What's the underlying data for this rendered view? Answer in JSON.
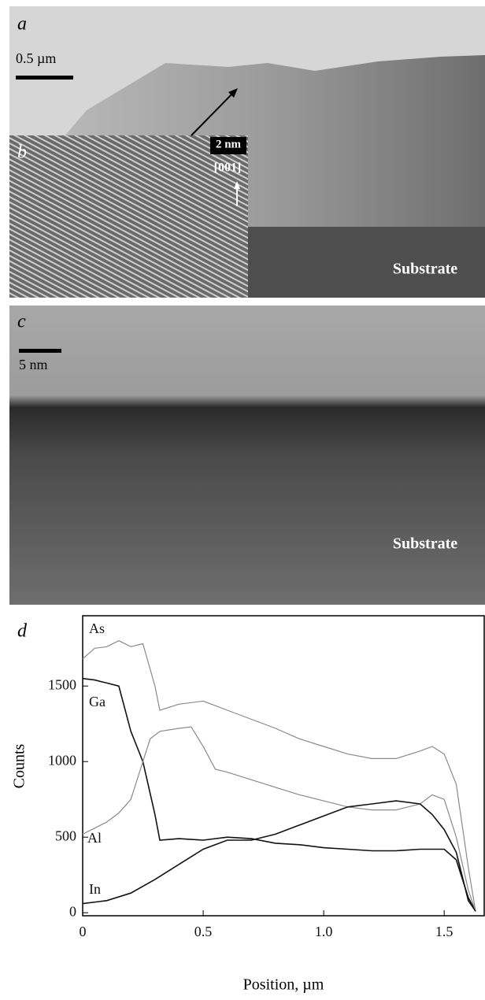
{
  "panels": {
    "a": {
      "letter": "a",
      "scale": "0.5 µm",
      "label": "Substrate"
    },
    "b": {
      "letter": "b",
      "scale": "2 nm",
      "direction": "[001]"
    },
    "c": {
      "letter": "c",
      "scale": "5 nm",
      "label": "Substrate"
    }
  },
  "chart_data": {
    "type": "line",
    "letter": "d",
    "x_label": "Position, µm",
    "y_label": "Counts",
    "xlim": [
      0,
      1.666
    ],
    "ylim": [
      -20,
      1965
    ],
    "xticks": [
      0,
      0.5,
      {
        "value": 1,
        "label": "1.0"
      },
      1.5
    ],
    "yticks": [
      0,
      500,
      1000,
      1500
    ],
    "series": [
      {
        "name": "As",
        "color": "#8a8a8a",
        "x": [
          0,
          0.05,
          0.1,
          0.15,
          0.2,
          0.25,
          0.3,
          0.32,
          0.4,
          0.5,
          0.6,
          0.7,
          0.8,
          0.9,
          1.0,
          1.1,
          1.2,
          1.3,
          1.4,
          1.45,
          1.5,
          1.55,
          1.6,
          1.63
        ],
        "values": [
          1680,
          1750,
          1760,
          1800,
          1760,
          1780,
          1500,
          1340,
          1380,
          1400,
          1340,
          1280,
          1220,
          1150,
          1100,
          1050,
          1020,
          1020,
          1070,
          1100,
          1050,
          850,
          300,
          10
        ]
      },
      {
        "name": "Ga",
        "color": "#111111",
        "x": [
          0,
          0.05,
          0.1,
          0.15,
          0.2,
          0.25,
          0.3,
          0.32,
          0.4,
          0.5,
          0.6,
          0.7,
          0.8,
          0.9,
          1.0,
          1.1,
          1.2,
          1.3,
          1.4,
          1.5,
          1.55,
          1.6,
          1.63
        ],
        "values": [
          1550,
          1540,
          1520,
          1500,
          1200,
          1000,
          650,
          480,
          490,
          480,
          500,
          490,
          460,
          450,
          430,
          420,
          410,
          410,
          420,
          420,
          350,
          100,
          10
        ]
      },
      {
        "name": "Al",
        "color": "#8a8a8a",
        "x": [
          0,
          0.05,
          0.1,
          0.15,
          0.2,
          0.25,
          0.28,
          0.32,
          0.4,
          0.45,
          0.5,
          0.55,
          0.6,
          0.7,
          0.8,
          0.9,
          1.0,
          1.1,
          1.2,
          1.3,
          1.4,
          1.45,
          1.5,
          1.55,
          1.6,
          1.63
        ],
        "values": [
          520,
          560,
          600,
          660,
          750,
          1000,
          1150,
          1200,
          1220,
          1230,
          1100,
          950,
          930,
          880,
          830,
          780,
          740,
          700,
          680,
          680,
          720,
          780,
          750,
          500,
          150,
          10
        ]
      },
      {
        "name": "In",
        "color": "#111111",
        "x": [
          0,
          0.1,
          0.2,
          0.3,
          0.4,
          0.5,
          0.6,
          0.7,
          0.8,
          0.9,
          1.0,
          1.1,
          1.2,
          1.3,
          1.4,
          1.45,
          1.5,
          1.55,
          1.6,
          1.63
        ],
        "values": [
          60,
          80,
          130,
          220,
          320,
          420,
          480,
          480,
          520,
          580,
          640,
          700,
          720,
          740,
          720,
          650,
          550,
          400,
          80,
          10
        ]
      }
    ]
  }
}
